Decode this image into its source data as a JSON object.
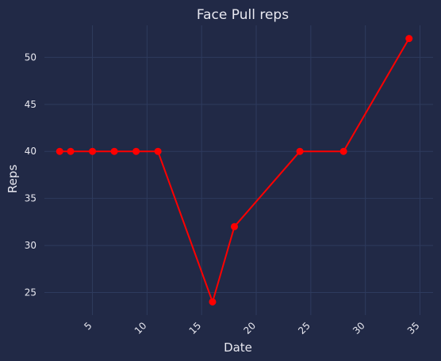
{
  "chart_data": {
    "type": "line",
    "title": "Face Pull reps",
    "xlabel": "Date",
    "ylabel": "Reps",
    "x_ticks": [
      5,
      10,
      15,
      20,
      25,
      30,
      35
    ],
    "y_ticks": [
      25,
      30,
      35,
      40,
      45,
      50
    ],
    "xlim": [
      0.6,
      36.2
    ],
    "ylim": [
      22.6,
      53.4
    ],
    "grid": true,
    "background_color": "#212946",
    "series": [
      {
        "color": "#ff0000",
        "x": [
          2,
          3,
          5,
          7,
          9,
          11,
          16,
          18,
          24,
          28,
          34
        ],
        "y": [
          40,
          40,
          40,
          40,
          40,
          40,
          24,
          32,
          40,
          40,
          52
        ]
      }
    ]
  }
}
